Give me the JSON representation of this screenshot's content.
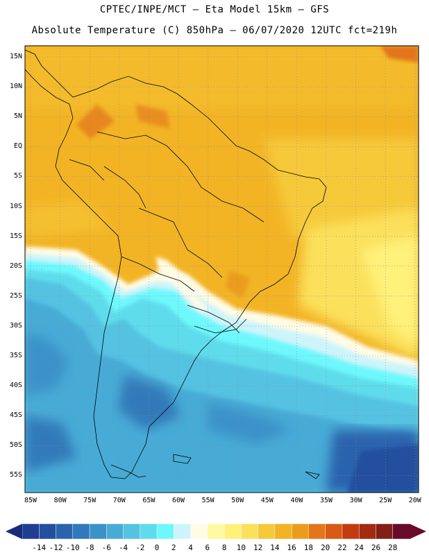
{
  "header": {
    "line1": "CPTEC/INPE/MCT –  Eta Model 15km – GFS",
    "line2": "Absolute Temperature (C) 850hPa – 06/07/2020 12UTC fct=219h"
  },
  "axes": {
    "lat_labels": [
      "15N",
      "10N",
      "5N",
      "EQ",
      "5S",
      "10S",
      "15S",
      "20S",
      "25S",
      "30S",
      "35S",
      "40S",
      "45S",
      "50S",
      "55S"
    ],
    "lon_labels": [
      "85W",
      "80W",
      "75W",
      "70W",
      "65W",
      "60W",
      "55W",
      "50W",
      "45W",
      "40W",
      "35W",
      "30W",
      "25W",
      "20W"
    ]
  },
  "colorbar": {
    "labels": [
      "-14",
      "-12",
      "-10",
      "-8",
      "-6",
      "-4",
      "-2",
      "0",
      "2",
      "4",
      "6",
      "8",
      "10",
      "12",
      "14",
      "16",
      "18",
      "20",
      "22",
      "24",
      "26",
      "28"
    ],
    "colors": [
      "#1f3e91",
      "#23509e",
      "#2a64ad",
      "#3079ba",
      "#3b92c9",
      "#47abd6",
      "#55c2e2",
      "#5fdcec",
      "#6ef8fc",
      "#cdf4fb",
      "#fffbe6",
      "#fffaa0",
      "#fff17a",
      "#fbe05c",
      "#f6c93b",
      "#f2b425",
      "#ea9d1d",
      "#e3751a",
      "#d85a14",
      "#c23c10",
      "#a32a0f",
      "#802018",
      "#6a0a2a"
    ],
    "arrow_left_color": "#1a2a7a",
    "arrow_right_color": "#6a0a2a"
  },
  "map": {
    "frame_color": "#000000",
    "grid_color": "#888888"
  }
}
